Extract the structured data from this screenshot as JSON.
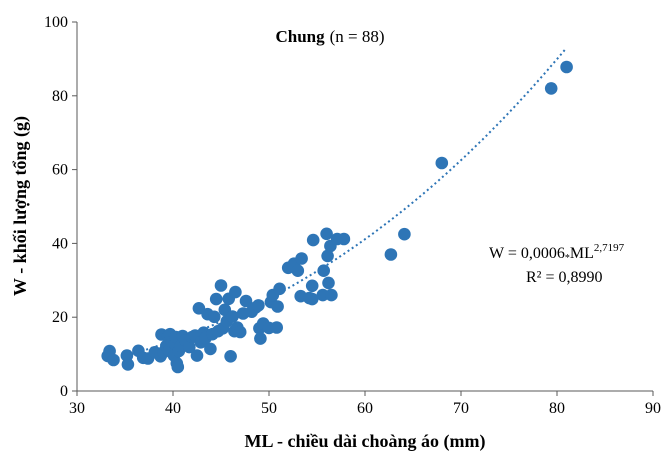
{
  "chart_data": {
    "type": "scatter",
    "title": "Chung",
    "title_suffix": "(n = 88)",
    "xlabel": "ML - chiều dài choàng áo (mm)",
    "ylabel": "W - khối lượng tổng (g)",
    "xlim": [
      30,
      90
    ],
    "ylim": [
      0,
      100
    ],
    "xticks": [
      "30",
      "40",
      "50",
      "60",
      "70",
      "80",
      "90"
    ],
    "yticks": [
      "0",
      "20",
      "40",
      "60",
      "80",
      "100"
    ],
    "grid": false,
    "marker_color": "#2E75B6",
    "trendline": {
      "type": "power",
      "a": 0.0006,
      "b": 2.7197,
      "equation_prefix": "W = 0,0006",
      "equation_op": "*",
      "equation_var": "ML",
      "equation_exp": "2,7197",
      "r2_label": "R² = 0,8990",
      "style": "dotted",
      "color": "#2E75B6"
    },
    "points": [
      [
        33.2,
        9.5
      ],
      [
        33.4,
        10.8
      ],
      [
        33.8,
        8.4
      ],
      [
        35.2,
        9.6
      ],
      [
        35.3,
        7.2
      ],
      [
        36.4,
        10.9
      ],
      [
        36.9,
        9.0
      ],
      [
        37.4,
        8.8
      ],
      [
        38.1,
        10.5
      ],
      [
        38.7,
        9.4
      ],
      [
        38.8,
        15.3
      ],
      [
        39.0,
        10.5
      ],
      [
        39.3,
        12.2
      ],
      [
        39.5,
        14.9
      ],
      [
        39.6,
        11.0
      ],
      [
        39.7,
        15.4
      ],
      [
        39.9,
        13.3
      ],
      [
        40.1,
        9.6
      ],
      [
        40.2,
        12.9
      ],
      [
        40.3,
        14.6
      ],
      [
        40.4,
        7.5
      ],
      [
        40.5,
        6.5
      ],
      [
        40.6,
        10.8
      ],
      [
        40.8,
        12.1
      ],
      [
        41.0,
        14.9
      ],
      [
        41.3,
        13.7
      ],
      [
        41.7,
        11.9
      ],
      [
        42.0,
        14.6
      ],
      [
        42.3,
        15.0
      ],
      [
        42.5,
        9.6
      ],
      [
        42.7,
        22.4
      ],
      [
        42.9,
        13.2
      ],
      [
        43.2,
        15.8
      ],
      [
        43.4,
        14.4
      ],
      [
        43.6,
        20.8
      ],
      [
        43.9,
        11.4
      ],
      [
        44.1,
        15.4
      ],
      [
        44.3,
        20.1
      ],
      [
        44.5,
        24.9
      ],
      [
        44.7,
        16.2
      ],
      [
        45.0,
        28.6
      ],
      [
        45.2,
        17.0
      ],
      [
        45.4,
        22.0
      ],
      [
        45.6,
        18.9
      ],
      [
        45.8,
        25.0
      ],
      [
        46.0,
        9.4
      ],
      [
        46.2,
        20.2
      ],
      [
        46.4,
        16.2
      ],
      [
        46.5,
        26.8
      ],
      [
        46.7,
        17.2
      ],
      [
        47.0,
        16.0
      ],
      [
        47.3,
        21.0
      ],
      [
        47.6,
        24.4
      ],
      [
        48.2,
        21.5
      ],
      [
        48.6,
        22.6
      ],
      [
        48.9,
        23.2
      ],
      [
        49.0,
        17.0
      ],
      [
        49.1,
        14.2
      ],
      [
        49.4,
        18.3
      ],
      [
        50.0,
        17.1
      ],
      [
        50.2,
        24.1
      ],
      [
        50.4,
        26.0
      ],
      [
        50.8,
        17.2
      ],
      [
        50.9,
        22.9
      ],
      [
        51.1,
        27.7
      ],
      [
        52.0,
        33.4
      ],
      [
        52.6,
        34.5
      ],
      [
        53.0,
        32.6
      ],
      [
        53.3,
        25.7
      ],
      [
        53.4,
        35.9
      ],
      [
        54.2,
        25.2
      ],
      [
        54.5,
        24.9
      ],
      [
        54.5,
        28.5
      ],
      [
        54.6,
        40.9
      ],
      [
        55.6,
        26.0
      ],
      [
        55.7,
        32.6
      ],
      [
        56.0,
        42.6
      ],
      [
        56.1,
        36.6
      ],
      [
        56.2,
        29.3
      ],
      [
        56.4,
        39.3
      ],
      [
        56.5,
        26.0
      ],
      [
        57.1,
        41.2
      ],
      [
        57.8,
        41.2
      ],
      [
        62.7,
        37.0
      ],
      [
        64.1,
        42.5
      ],
      [
        68.0,
        61.8
      ],
      [
        79.4,
        82.0
      ],
      [
        81.0,
        87.8
      ]
    ]
  }
}
